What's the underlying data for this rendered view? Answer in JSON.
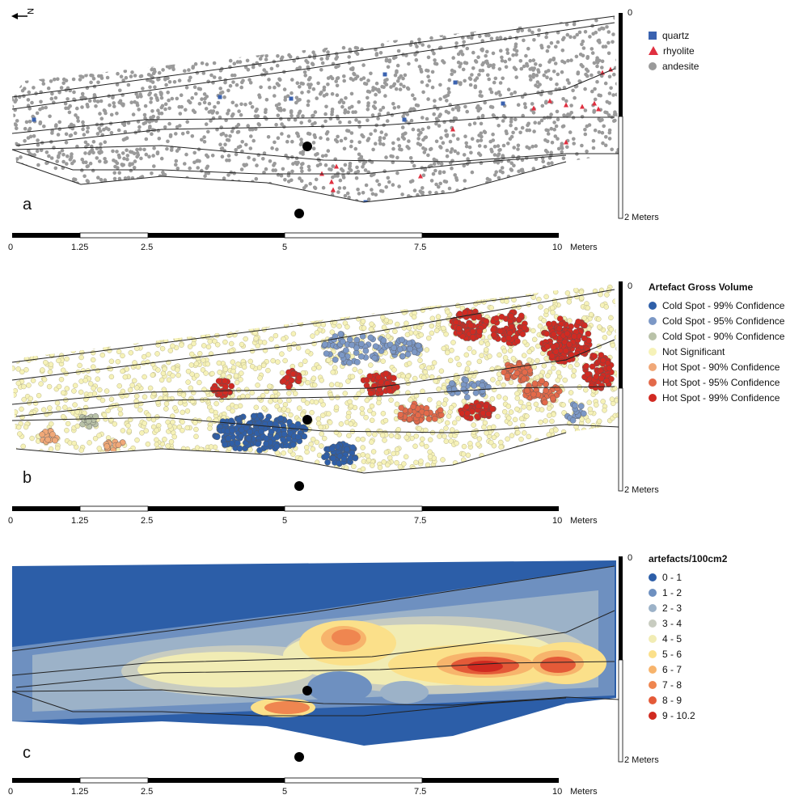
{
  "north_label": "N",
  "vertical_scale": {
    "top": "0",
    "bottom": "2 Meters"
  },
  "horizontal_scale": {
    "ticks": [
      "0",
      "1.25",
      "2.5",
      "5",
      "7.5",
      "10"
    ],
    "unit": "Meters"
  },
  "panels": {
    "a": {
      "letter": "a",
      "legend": [
        {
          "label": "quartz",
          "shape": "square",
          "color": "#3a62b0"
        },
        {
          "label": "rhyolite",
          "shape": "triangle",
          "color": "#e03040"
        },
        {
          "label": "andesite",
          "shape": "circle",
          "color": "#9a9a9a"
        }
      ]
    },
    "b": {
      "letter": "b",
      "legend_title": "Artefact Gross Volume",
      "legend": [
        {
          "label": "Cold Spot - 99% Confidence",
          "color": "#2f5fa8"
        },
        {
          "label": "Cold Spot - 95% Confidence",
          "color": "#7c98c6"
        },
        {
          "label": "Cold Spot - 90% Confidence",
          "color": "#b9c2a8"
        },
        {
          "label": "Not Significant",
          "color": "#f6f2b8"
        },
        {
          "label": "Hot Spot - 90% Confidence",
          "color": "#f0a878"
        },
        {
          "label": "Hot Spot - 95% Confidence",
          "color": "#e36a4a"
        },
        {
          "label": "Hot Spot - 99% Confidence",
          "color": "#d12a22"
        }
      ]
    },
    "c": {
      "letter": "c",
      "legend_title": "artefacts/100cm2",
      "legend": [
        {
          "label": "0 - 1",
          "color": "#2c5ea8"
        },
        {
          "label": "1 - 2",
          "color": "#6e90c0"
        },
        {
          "label": "2 - 3",
          "color": "#9cb2c8"
        },
        {
          "label": "3 - 4",
          "color": "#c8ccc0"
        },
        {
          "label": "4 - 5",
          "color": "#f1ecb4"
        },
        {
          "label": "5 - 6",
          "color": "#fbe08a"
        },
        {
          "label": "6 - 7",
          "color": "#f7b46c"
        },
        {
          "label": "7 - 8",
          "color": "#ef8650"
        },
        {
          "label": "8 - 9",
          "color": "#e45a38"
        },
        {
          "label": "9 - 10.2",
          "color": "#d02a20"
        }
      ]
    }
  }
}
